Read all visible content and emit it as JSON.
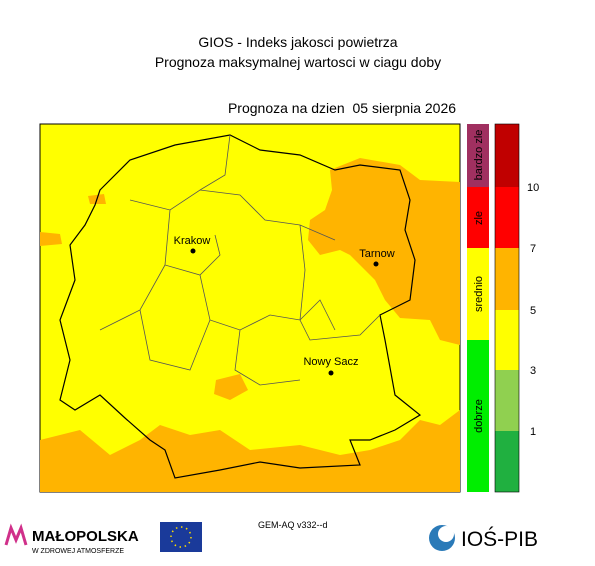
{
  "header": {
    "title": "GIOS - Indeks jakosci powietrza",
    "subtitle": "Prognoza maksymalnej wartosci w ciagu doby"
  },
  "map": {
    "date_label": "Prognoza na dzien  05 sierpnia 2026",
    "cities": [
      "Krakow",
      "Tarnow",
      "Nowy Sacz"
    ]
  },
  "legend": {
    "categories": [
      "bardzo zle",
      "zle",
      "srednio",
      "dobrze"
    ],
    "scale_labels": [
      10,
      7,
      5,
      3,
      1
    ]
  },
  "footer": {
    "model": "GEM-AQ v332--d",
    "logo_left": "MAŁOPOLSKA",
    "logo_left_tagline": "W ZDROWEJ ATMOSFERZE",
    "logo_right": "IOŚ-PIB"
  }
}
